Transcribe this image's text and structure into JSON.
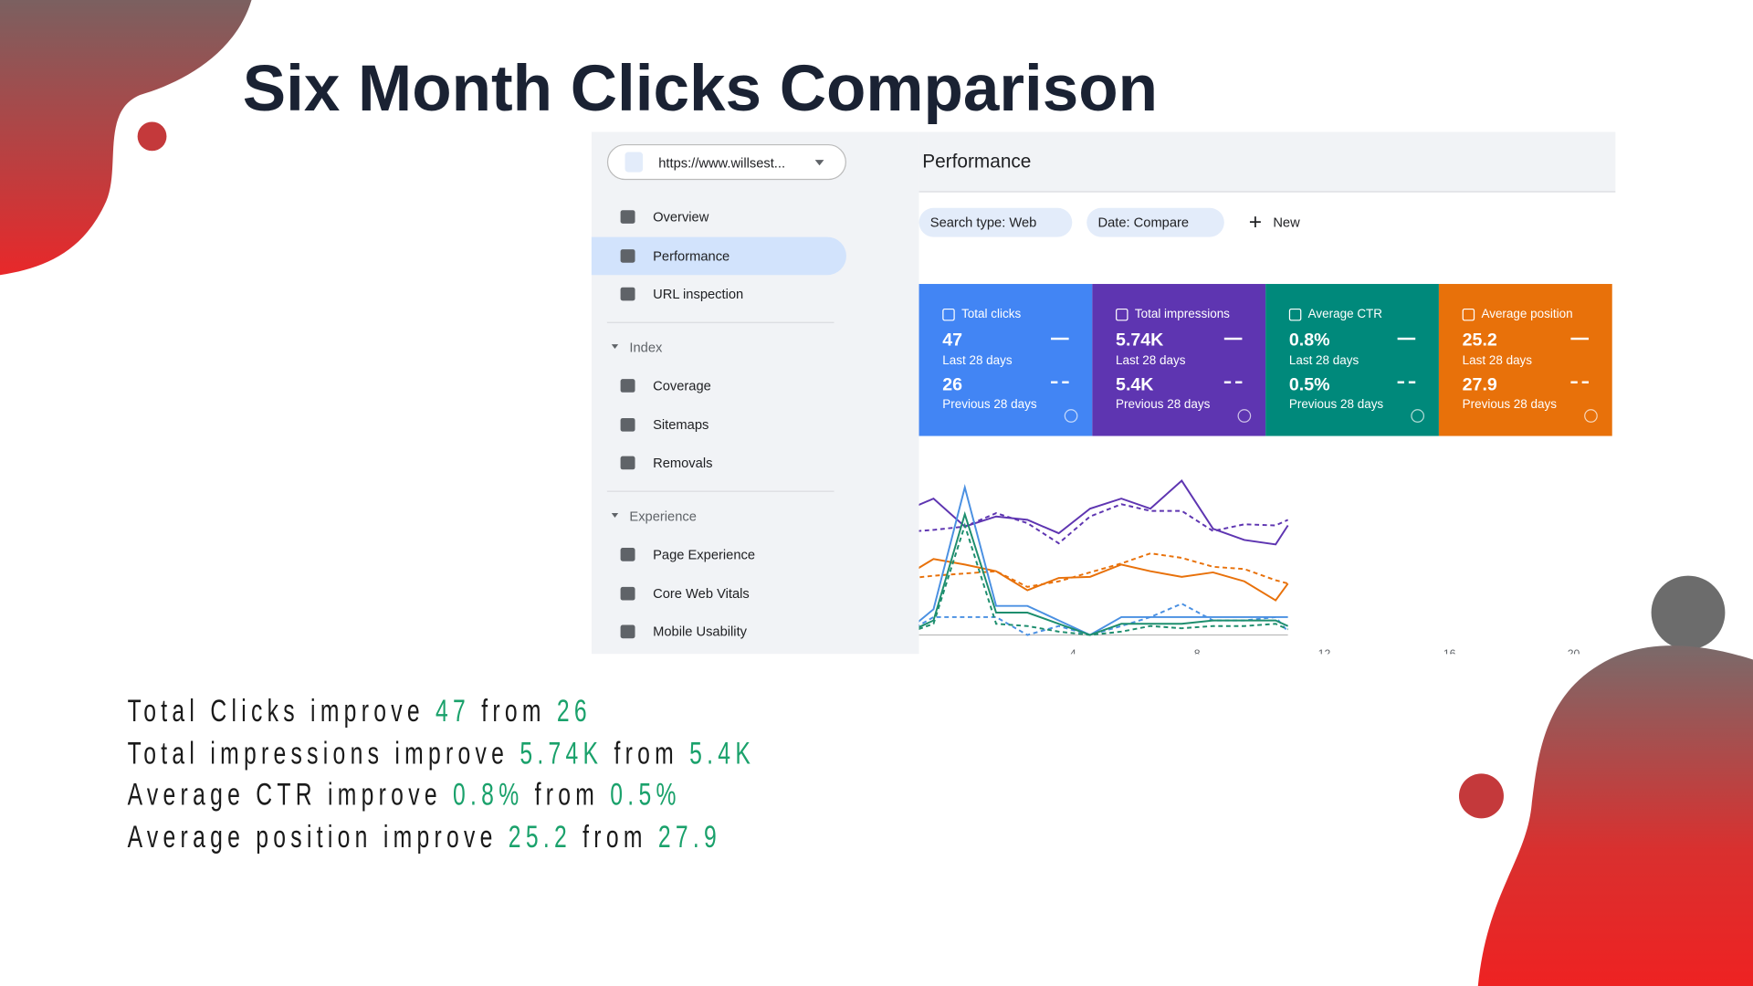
{
  "title": "Six Month Clicks Comparison",
  "sidebar": {
    "property": "https://www.willsest...",
    "items": [
      "Overview",
      "Performance",
      "URL inspection"
    ],
    "sections": [
      {
        "name": "Index",
        "items": [
          "Coverage",
          "Sitemaps",
          "Removals"
        ]
      },
      {
        "name": "Experience",
        "items": [
          "Page Experience",
          "Core Web Vitals",
          "Mobile Usability"
        ]
      }
    ]
  },
  "main": {
    "header": "Performance",
    "filters": [
      "Search type: Web",
      "Date: Compare"
    ],
    "new_button": "New",
    "cards": [
      {
        "name": "Total clicks",
        "current": "47",
        "current_label": "Last 28 days",
        "previous": "26",
        "previous_label": "Previous 28 days"
      },
      {
        "name": "Total impressions",
        "current": "5.74K",
        "current_label": "Last 28 days",
        "previous": "5.4K",
        "previous_label": "Previous 28 days"
      },
      {
        "name": "Average CTR",
        "current": "0.8%",
        "current_label": "Last 28 days",
        "previous": "0.5%",
        "previous_label": "Previous 28 days"
      },
      {
        "name": "Average position",
        "current": "25.2",
        "current_label": "Last 28 days",
        "previous": "27.9",
        "previous_label": "Previous 28 days"
      }
    ],
    "x_labels": [
      "4",
      "8",
      "12",
      "16",
      "20"
    ]
  },
  "summary": [
    {
      "label": "Total Clicks improve",
      "new": "47",
      "from": "from",
      "old": "26"
    },
    {
      "label": "Total impressions improve",
      "new": "5.74K",
      "from": "from",
      "old": "5.4K"
    },
    {
      "label": "Average CTR improve",
      "new": "0.8%",
      "from": "from",
      "old": "0.5%"
    },
    {
      "label": "Average position improve",
      "new": "25.2",
      "from": "from",
      "old": "27.9"
    }
  ]
}
